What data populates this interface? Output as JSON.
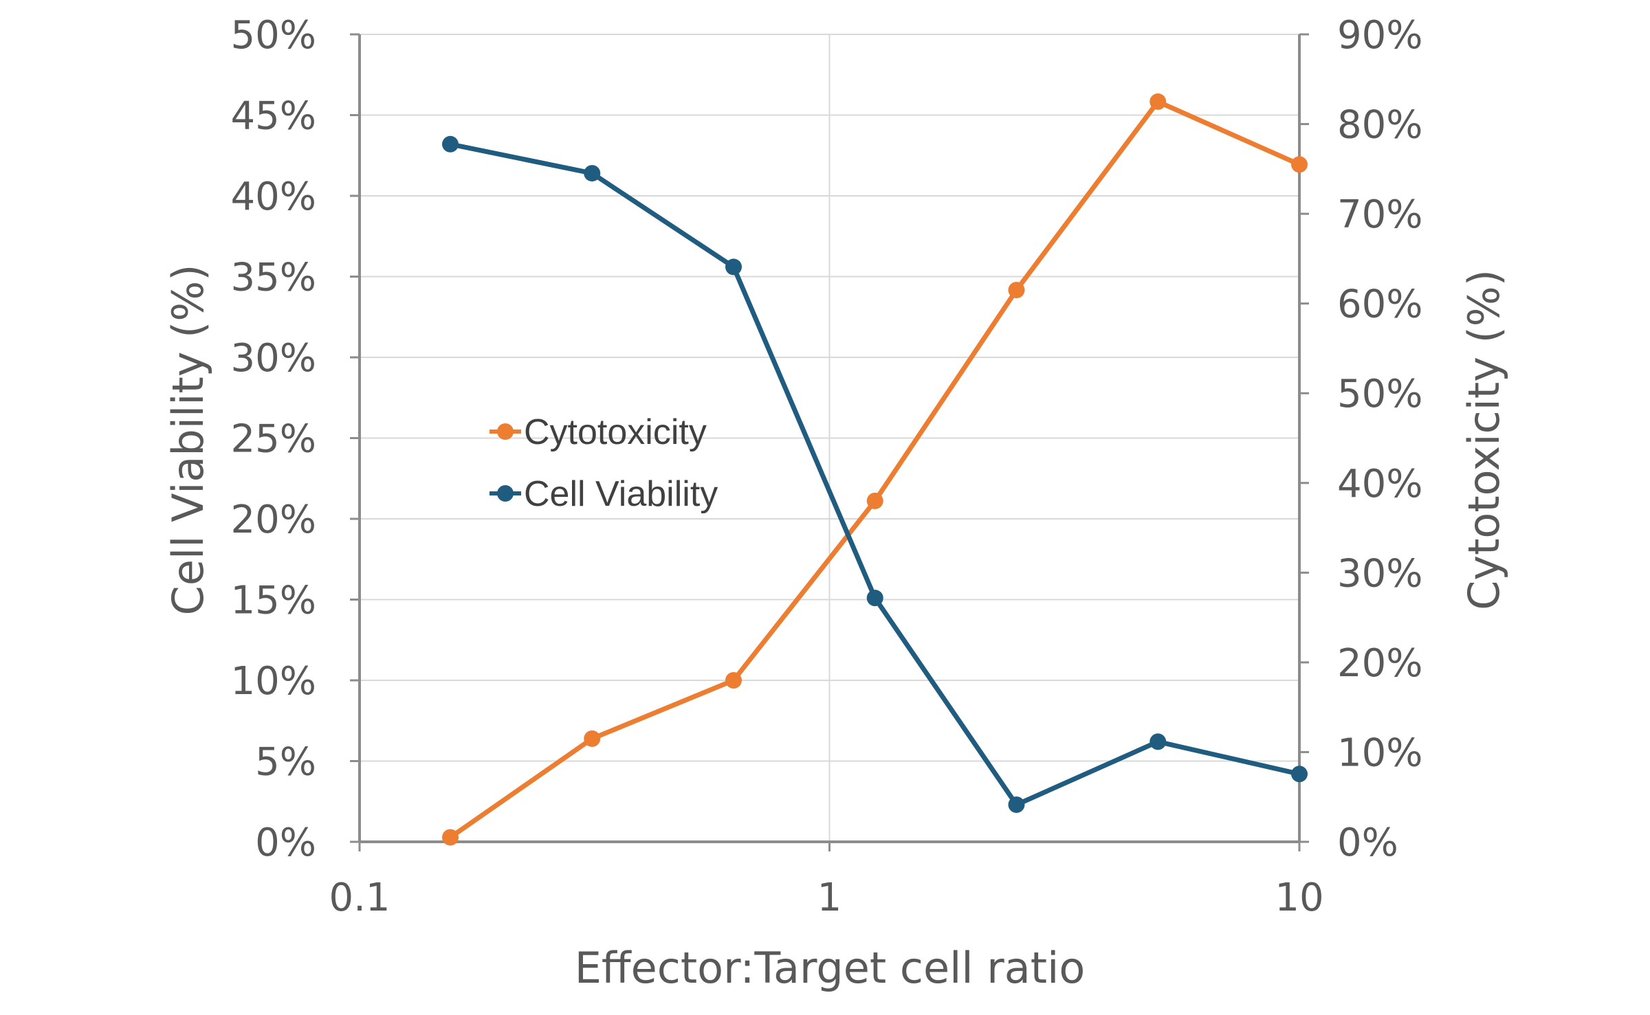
{
  "chart_data": {
    "type": "line",
    "x_scale": "log",
    "xlabel": "Effector:Target cell ratio",
    "xlim": [
      0.1,
      10
    ],
    "x_ticks": [
      "0.1",
      "1",
      "10"
    ],
    "ylabel_left": "Cell Viability (%)",
    "ylim_left": [
      0,
      50
    ],
    "y_ticks_left": [
      "0%",
      "5%",
      "10%",
      "15%",
      "20%",
      "25%",
      "30%",
      "35%",
      "40%",
      "45%",
      "50%"
    ],
    "ylabel_right": "Cytotoxicity (%)",
    "ylim_right": [
      0,
      90
    ],
    "y_ticks_right": [
      "0%",
      "10%",
      "20%",
      "30%",
      "40%",
      "50%",
      "60%",
      "70%",
      "80%",
      "90%"
    ],
    "grid": true,
    "legend_position": "center-left",
    "x": [
      0.156,
      0.3125,
      0.625,
      1.25,
      2.5,
      5,
      10
    ],
    "series": [
      {
        "name": "Cytotoxicity",
        "axis": "right",
        "color": "#ED7D31",
        "values": [
          0.5,
          11.5,
          18,
          38,
          61.5,
          82.5,
          75.5
        ]
      },
      {
        "name": "Cell Viability",
        "axis": "left",
        "color": "#1F5C7F",
        "values": [
          43.2,
          41.4,
          35.6,
          15.1,
          2.3,
          6.2,
          4.2
        ]
      }
    ]
  }
}
